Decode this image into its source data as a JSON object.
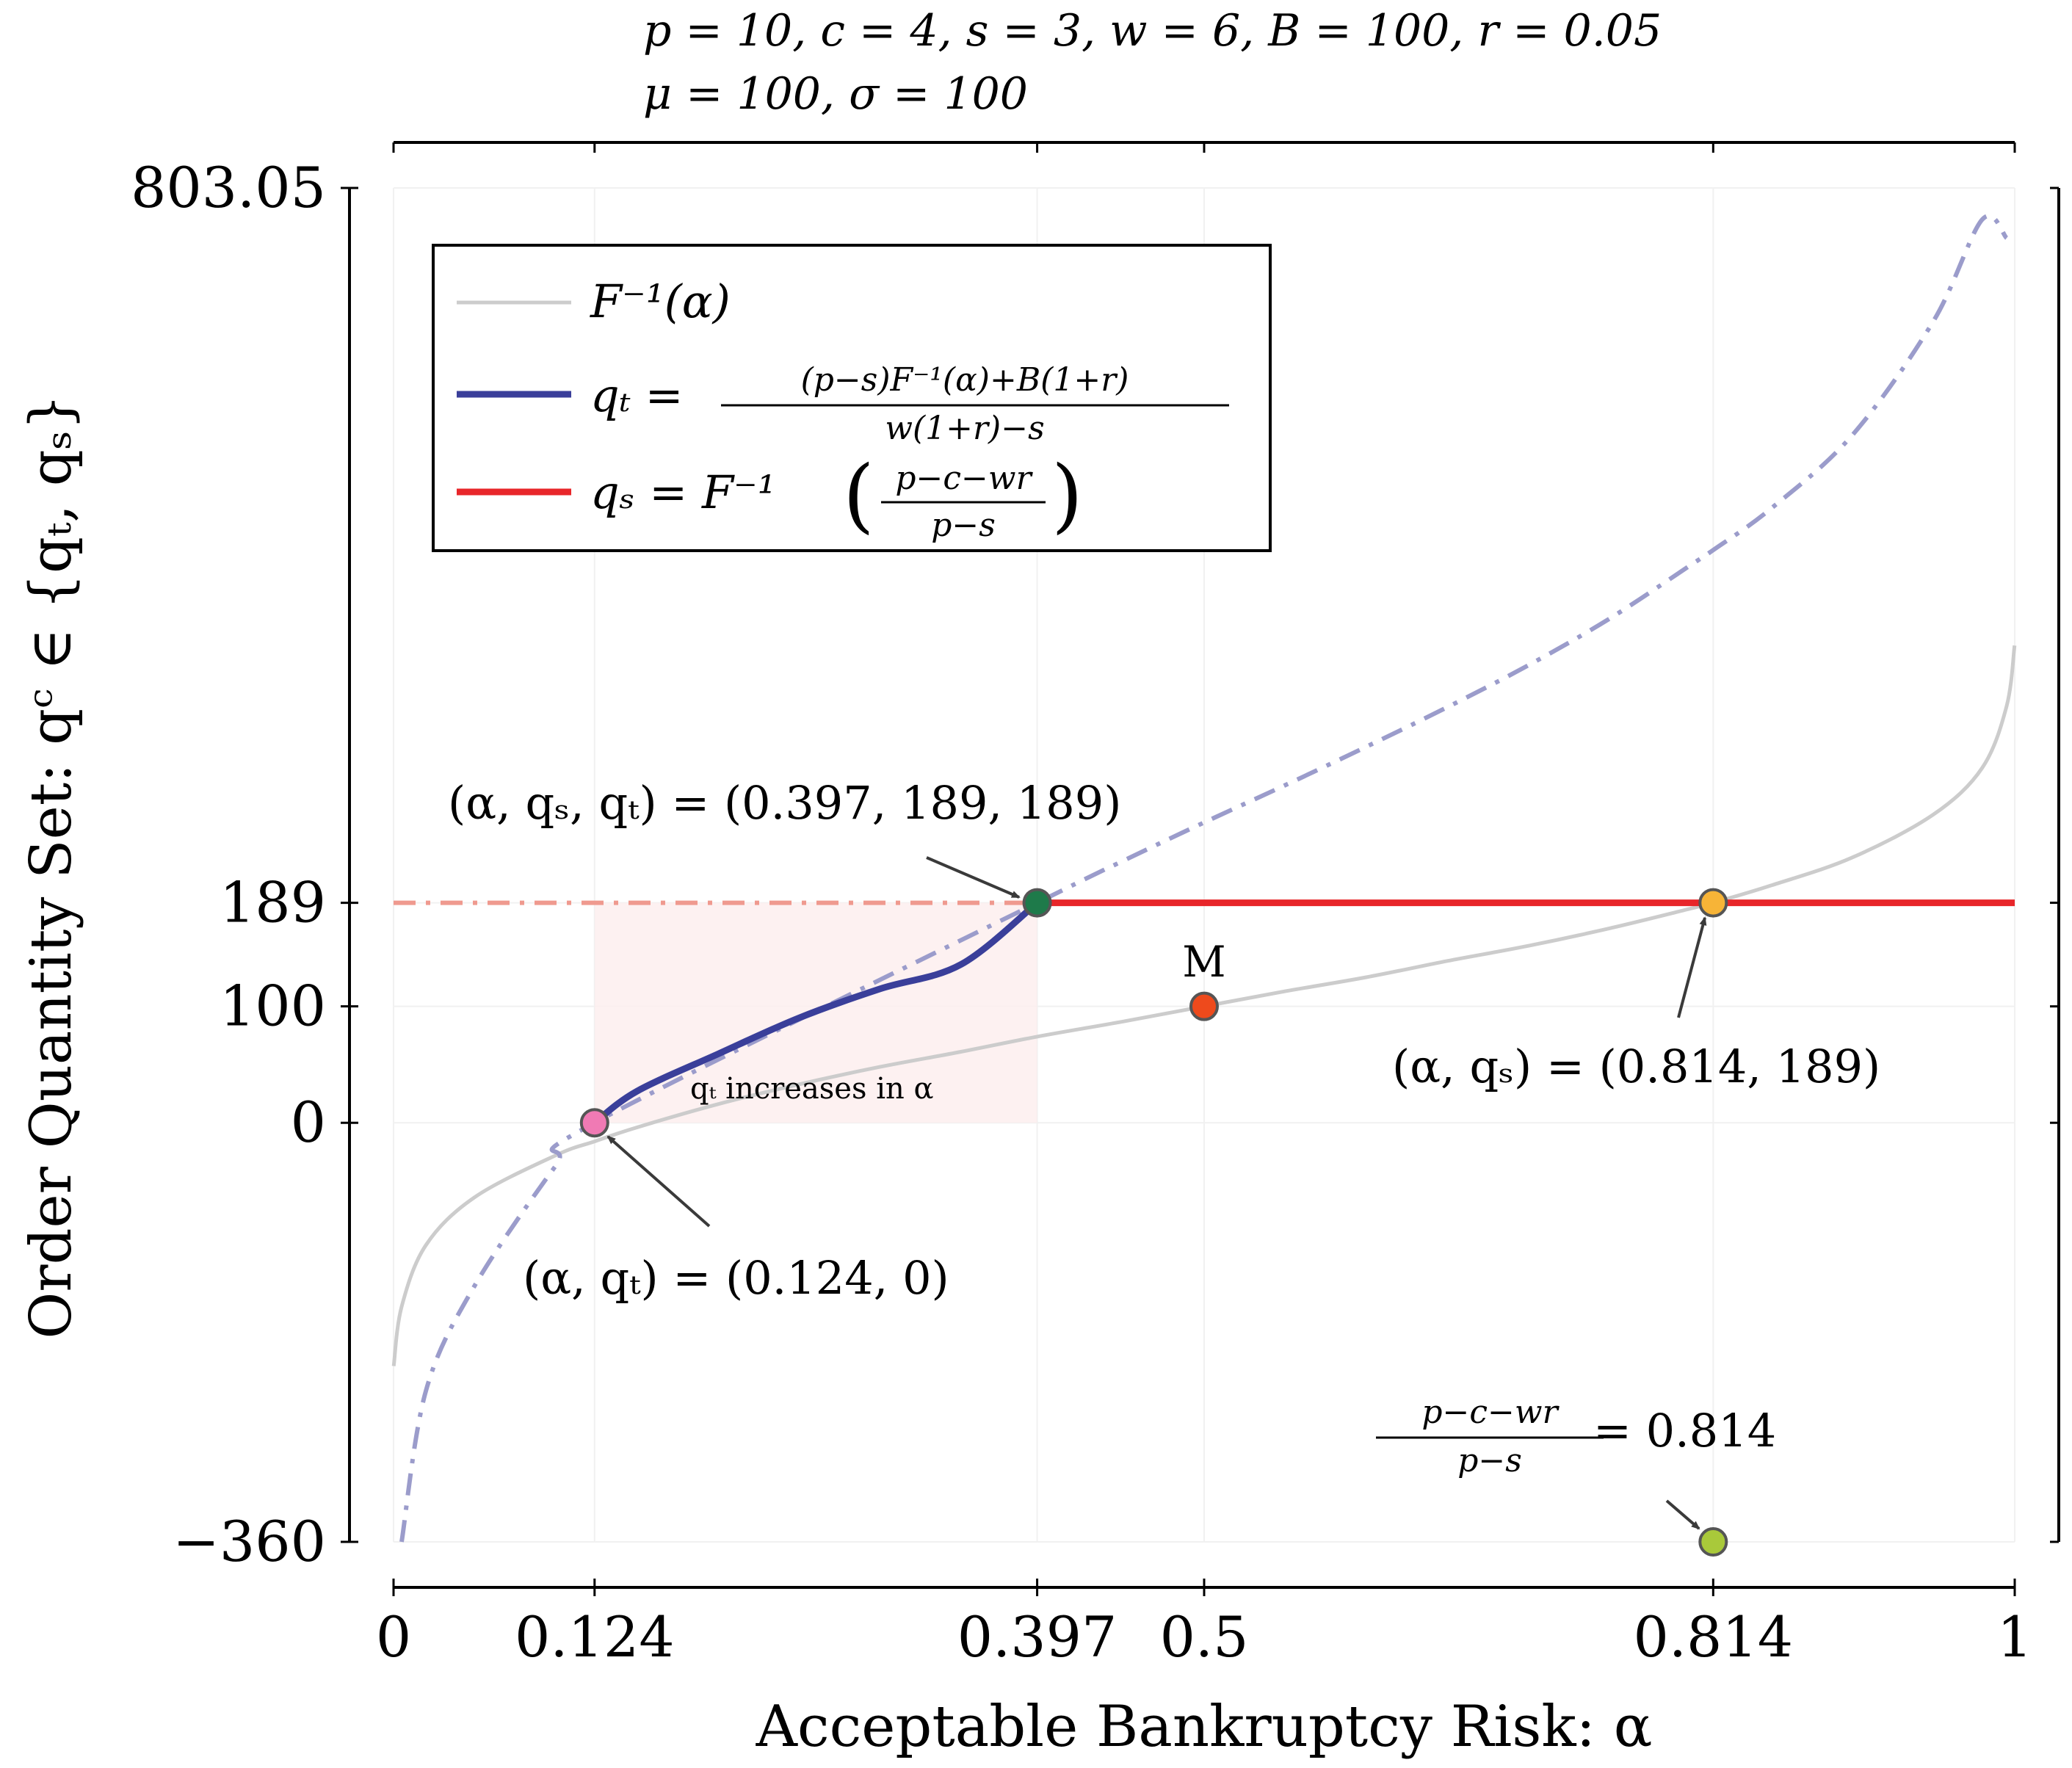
{
  "chart_data": {
    "type": "line",
    "title_lines": [
      "p = 10, c = 4, s = 3, w = 6, B = 100, r = 0.05",
      "μ = 100, σ = 100"
    ],
    "xlabel": "Acceptable Bankruptcy Risk: α",
    "ylabel": "Order Quantity Set: qᶜ ∈ {qₜ, qₛ}",
    "xlim": [
      0,
      1
    ],
    "ylim": [
      -360,
      803.05
    ],
    "x_ticks": [
      {
        "value": 0,
        "label": "0"
      },
      {
        "value": 0.124,
        "label": "0.124"
      },
      {
        "value": 0.397,
        "label": "0.397"
      },
      {
        "value": 0.5,
        "label": "0.5"
      },
      {
        "value": 0.814,
        "label": "0.814"
      },
      {
        "value": 1,
        "label": "1"
      }
    ],
    "y_ticks": [
      {
        "value": -360,
        "label": "−360"
      },
      {
        "value": 0,
        "label": "0"
      },
      {
        "value": 100,
        "label": "100"
      },
      {
        "value": 189,
        "label": "189"
      },
      {
        "value": 803.05,
        "label": "803.05"
      }
    ],
    "legend": {
      "position": "top-left",
      "entries": [
        {
          "label": "F⁻¹(α)",
          "color": "#cccccc"
        },
        {
          "label_lhs": "qₜ =",
          "num": "(p−s)F⁻¹(α)+B(1+r)",
          "den": "w(1+r)−s",
          "color": "#3a3f9a"
        },
        {
          "label_lhs": "qₛ = F⁻¹",
          "num": "p−c−wr",
          "den": "p−s",
          "color": "#e8262a"
        }
      ]
    },
    "series": [
      {
        "name": "F⁻¹(α)",
        "color": "#cccccc",
        "x": [
          0.0001,
          0.005,
          0.02,
          0.05,
          0.1,
          0.124,
          0.15,
          0.2,
          0.25,
          0.3,
          0.35,
          0.397,
          0.45,
          0.5,
          0.55,
          0.6,
          0.65,
          0.7,
          0.75,
          0.8,
          0.814,
          0.85,
          0.9,
          0.95,
          0.98,
          0.995,
          0.9999
        ],
        "y": [
          -209,
          -158,
          -105,
          -64,
          -28,
          -16,
          -4,
          16,
          33,
          48,
          61,
          74,
          87,
          100,
          113,
          125,
          139,
          152,
          167,
          184,
          189,
          204,
          228,
          265,
          305,
          358,
          410
        ]
      },
      {
        "name": "qₜ (feasible)",
        "color": "#3a3f9a",
        "style": "solid",
        "x": [
          0.124,
          0.15,
          0.2,
          0.25,
          0.3,
          0.35,
          0.397
        ],
        "y": [
          0,
          27,
          59,
          90,
          115,
          136,
          189
        ]
      },
      {
        "name": "qₜ (extension)",
        "color": "#9b9ccb",
        "style": "dash-dot",
        "x": [
          0.005,
          0.02,
          0.05,
          0.1,
          0.124,
          0.397,
          0.45,
          0.5,
          0.55,
          0.6,
          0.65,
          0.7,
          0.75,
          0.8,
          0.814,
          0.85,
          0.9,
          0.95,
          0.98,
          0.995
        ],
        "y": [
          -360,
          -230,
          -140,
          -37,
          0,
          189,
          225,
          258,
          290,
          323,
          357,
          393,
          433,
          479,
          492,
          528,
          591,
          689,
          776,
          760
        ]
      },
      {
        "name": "qₛ",
        "color": "#e8262a",
        "style": "solid",
        "x": [
          0.397,
          1
        ],
        "y": [
          189,
          189
        ]
      },
      {
        "name": "qₛ (extension)",
        "color": "#ef9a8f",
        "style": "dash-dot",
        "x": [
          0,
          0.397
        ],
        "y": [
          189,
          189
        ]
      }
    ],
    "shaded_region": {
      "x": [
        0.124,
        0.397
      ],
      "y": [
        0,
        189
      ],
      "label": "qₜ increases in α"
    },
    "points": [
      {
        "name": "qt-zero",
        "x": 0.124,
        "y": 0,
        "color": "#f07ab4",
        "label": "(α, qₜ) = (0.124, 0)"
      },
      {
        "name": "intersection",
        "x": 0.397,
        "y": 189,
        "color": "#1e7a4a",
        "label": "(α, qₛ, qₜ) = (0.397, 189, 189)"
      },
      {
        "name": "median",
        "x": 0.5,
        "y": 100,
        "color": "#ee4a1c",
        "label": "M"
      },
      {
        "name": "qs-point",
        "x": 0.814,
        "y": 189,
        "color": "#f7b437",
        "label": "(α, qₛ) = (0.814, 189)"
      },
      {
        "name": "critical-ratio",
        "x": 0.814,
        "y": -360,
        "color": "#a9c93a",
        "label_num": "p−c−wr",
        "label_den": "p−s",
        "label_rhs": "= 0.814"
      }
    ]
  }
}
